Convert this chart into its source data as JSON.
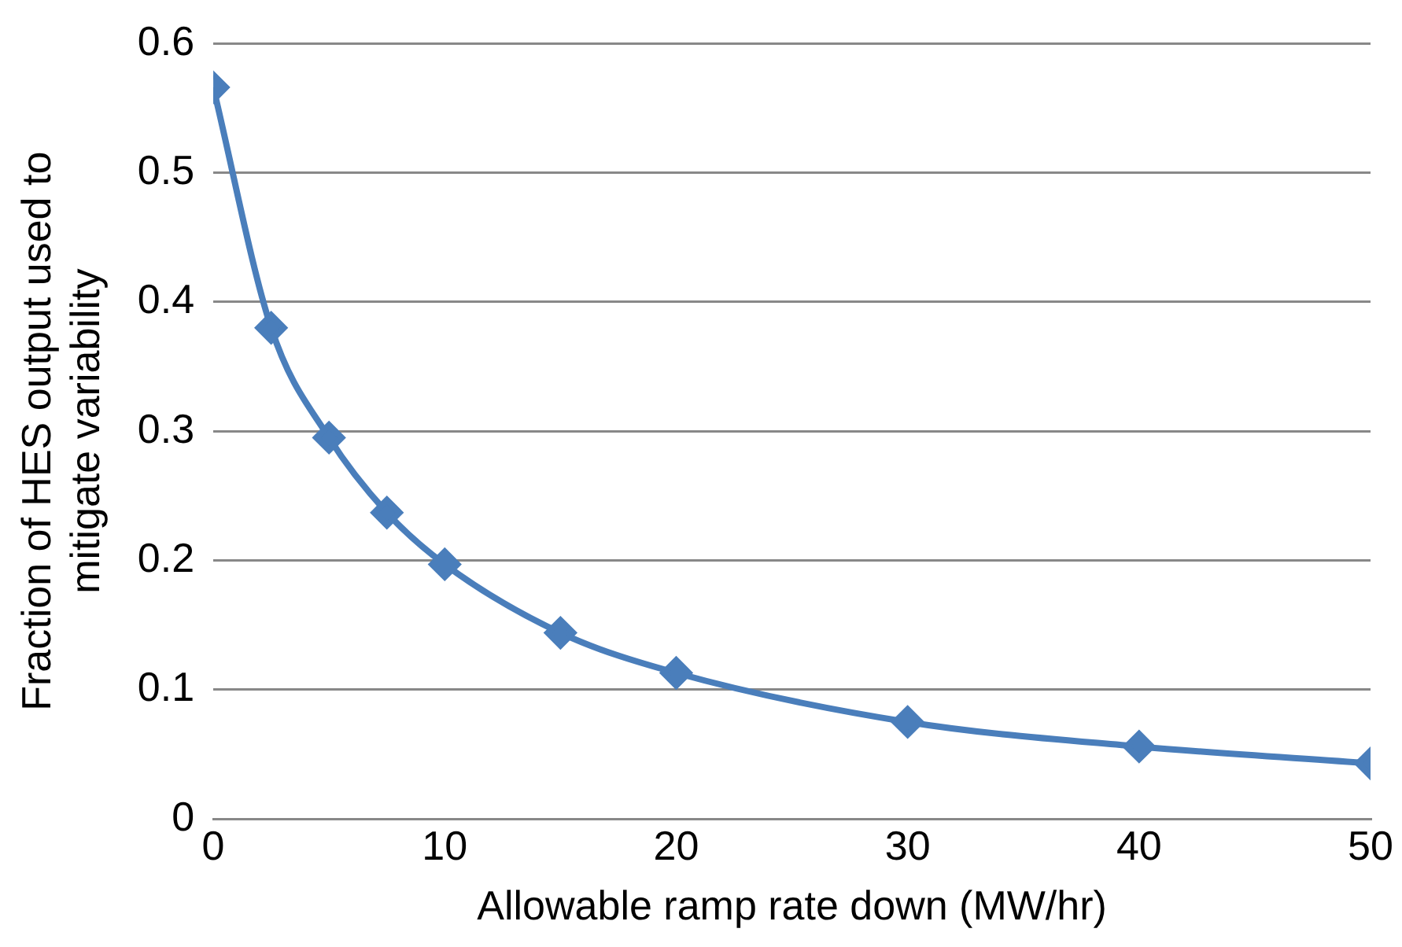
{
  "chart_data": {
    "type": "line",
    "xlabel": "Allowable ramp rate down (MW/hr)",
    "ylabel": "Fraction of HES output used to mitigate variability",
    "x": [
      0,
      2.5,
      5,
      7.5,
      10,
      15,
      20,
      30,
      40,
      50
    ],
    "series": [
      {
        "color": "#4a7ebb",
        "values": [
          0.566,
          0.38,
          0.295,
          0.237,
          0.197,
          0.144,
          0.113,
          0.075,
          0.056,
          0.043
        ]
      }
    ],
    "xlim": [
      0,
      50
    ],
    "xticks": [
      0,
      10,
      20,
      30,
      40,
      50
    ],
    "ylim": [
      0,
      0.6
    ],
    "yticks": [
      0,
      0.1,
      0.2,
      0.3,
      0.4,
      0.5,
      0.6
    ],
    "grid": "y",
    "legend": false,
    "marker": "diamond",
    "line_style": "solid"
  }
}
